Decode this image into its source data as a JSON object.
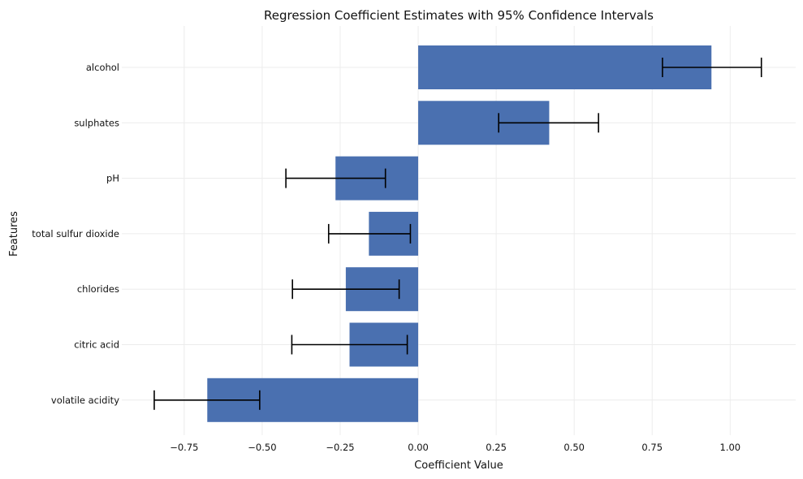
{
  "chart_data": {
    "type": "bar",
    "orientation": "horizontal",
    "title": "Regression Coefficient Estimates with 95% Confidence Intervals",
    "xlabel": "Coefficient Value",
    "ylabel": "Features",
    "xlim": [
      -0.95,
      1.21
    ],
    "x_ticks": [
      -0.75,
      -0.5,
      -0.25,
      0.0,
      0.25,
      0.5,
      0.75,
      1.0
    ],
    "x_tick_labels": [
      "−0.75",
      "−0.50",
      "−0.25",
      "0.00",
      "0.25",
      "0.50",
      "0.75",
      "1.00"
    ],
    "grid": true,
    "bar_color": "#4a70b0",
    "error_color": "#000000",
    "categories": [
      "alcohol",
      "sulphates",
      "pH",
      "total sulfur dioxide",
      "chlorides",
      "citric acid",
      "volatile acidity"
    ],
    "values": [
      0.94,
      0.42,
      -0.265,
      -0.158,
      -0.232,
      -0.22,
      -0.676
    ],
    "ci_lower": [
      0.783,
      0.258,
      -0.424,
      -0.287,
      -0.403,
      -0.405,
      -0.846
    ],
    "ci_upper": [
      1.1,
      0.578,
      -0.105,
      -0.025,
      -0.061,
      -0.035,
      -0.508
    ]
  }
}
